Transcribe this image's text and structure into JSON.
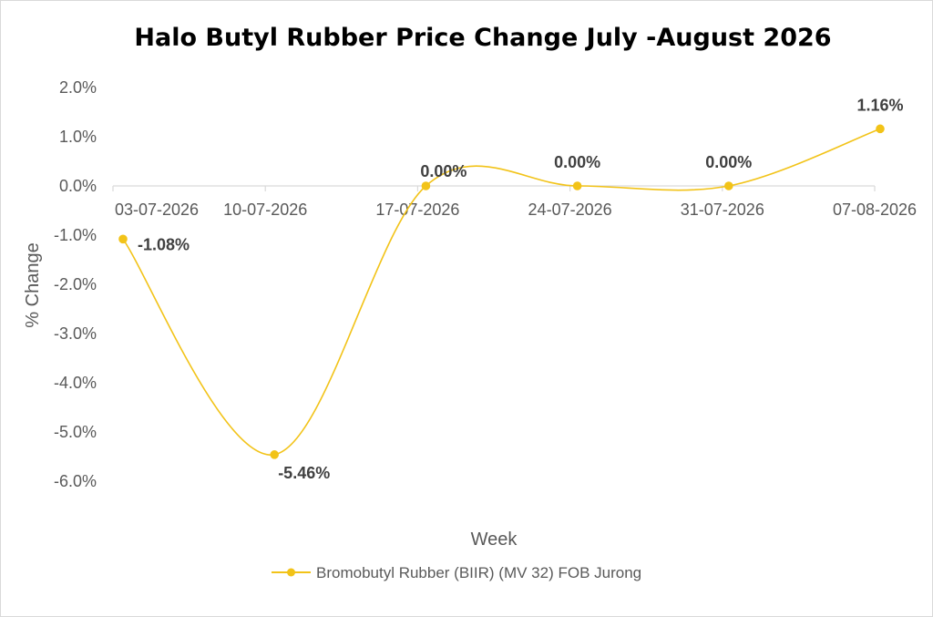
{
  "chart_data": {
    "type": "line",
    "title": "Halo Butyl Rubber Price Change July -August 2026",
    "xlabel": "Week",
    "ylabel": "% Change",
    "categories": [
      "03-07-2026",
      "10-07-2026",
      "17-07-2026",
      "24-07-2026",
      "31-07-2026",
      "07-08-2026"
    ],
    "series": [
      {
        "name": "Bromobutyl Rubber (BIIR) (MV 32) FOB Jurong",
        "values": [
          -1.08,
          -5.46,
          0.0,
          0.0,
          0.0,
          1.16
        ],
        "color": "#f2c318",
        "smooth": true
      }
    ],
    "data_labels": [
      "-1.08%",
      "-5.46%",
      "0.00%",
      "0.00%",
      "0.00%",
      "1.16%"
    ],
    "y_ticks": [
      "2.0%",
      "1.0%",
      "0.0%",
      "-1.0%",
      "-2.0%",
      "-3.0%",
      "-4.0%",
      "-5.0%",
      "-6.0%"
    ],
    "ylim": [
      -6,
      2
    ],
    "grid": false,
    "legend_position": "bottom"
  }
}
